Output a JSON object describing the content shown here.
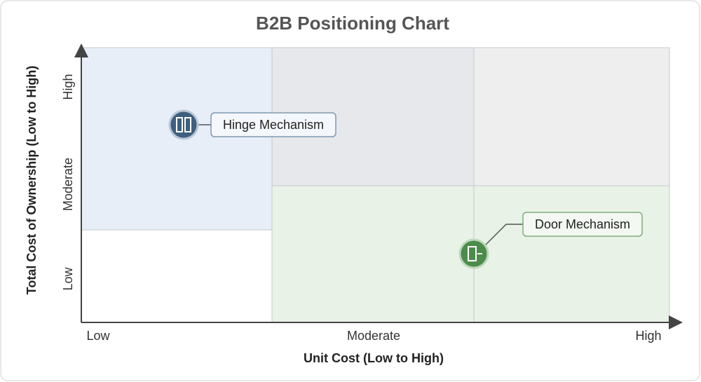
{
  "title": "B2B Positioning Chart",
  "x_axis": {
    "title": "Unit Cost (Low to High)",
    "labels": [
      "Low",
      "Moderate",
      "High"
    ]
  },
  "y_axis": {
    "title": "Total Cost of Ownership (Low to High)",
    "labels": [
      "Low",
      "Moderate",
      "High"
    ]
  },
  "items": [
    {
      "label": "Hinge Mechanism"
    },
    {
      "label": "Door Mechanism"
    }
  ]
}
